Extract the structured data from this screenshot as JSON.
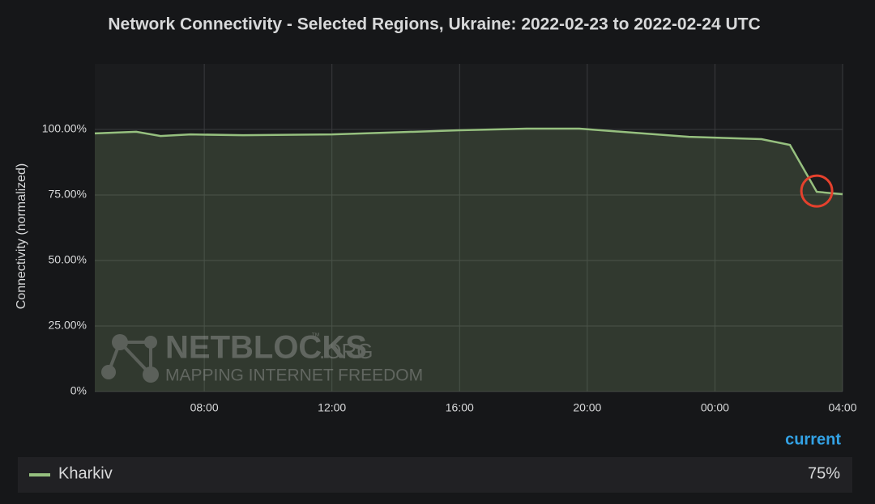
{
  "chart_data": {
    "type": "line",
    "title": "Network Connectivity - Selected Regions, Ukraine: 2022-02-23 to 2022-02-24 UTC",
    "ylabel": "Connectivity (normalized)",
    "x": [
      4.57,
      5.87,
      6.63,
      7.57,
      9.22,
      12.01,
      13.79,
      16.0,
      18.1,
      19.75,
      21.4,
      23.18,
      25.46,
      26.35,
      27.19,
      28
    ],
    "series": [
      {
        "name": "Kharkiv",
        "color": "#96c07f",
        "values": [
          98.5,
          99.1,
          97.5,
          98.1,
          97.8,
          98.1,
          98.8,
          99.7,
          100.3,
          100.3,
          98.8,
          97.2,
          96.3,
          94.1,
          76.2,
          75.3
        ]
      }
    ],
    "xlim": [
      4.57,
      28
    ],
    "xticks": [
      {
        "value": 8,
        "label": "08:00"
      },
      {
        "value": 12,
        "label": "12:00"
      },
      {
        "value": 16,
        "label": "16:00"
      },
      {
        "value": 20,
        "label": "20:00"
      },
      {
        "value": 24,
        "label": "00:00"
      },
      {
        "value": 28,
        "label": "04:00"
      }
    ],
    "ylim": [
      0,
      125
    ],
    "yticks": [
      {
        "value": 0,
        "label": "0%"
      },
      {
        "value": 25,
        "label": "25.00%"
      },
      {
        "value": 50,
        "label": "50.00%"
      },
      {
        "value": 75,
        "label": "75.00%"
      },
      {
        "value": 100,
        "label": "100.00%"
      }
    ],
    "grid": true,
    "legend_header": "current",
    "legend_current": "75%",
    "watermark": {
      "brand": "NETBLOCKS",
      "tm": "™",
      "suffix": ".ORG",
      "tagline": "MAPPING INTERNET FREEDOM"
    }
  }
}
